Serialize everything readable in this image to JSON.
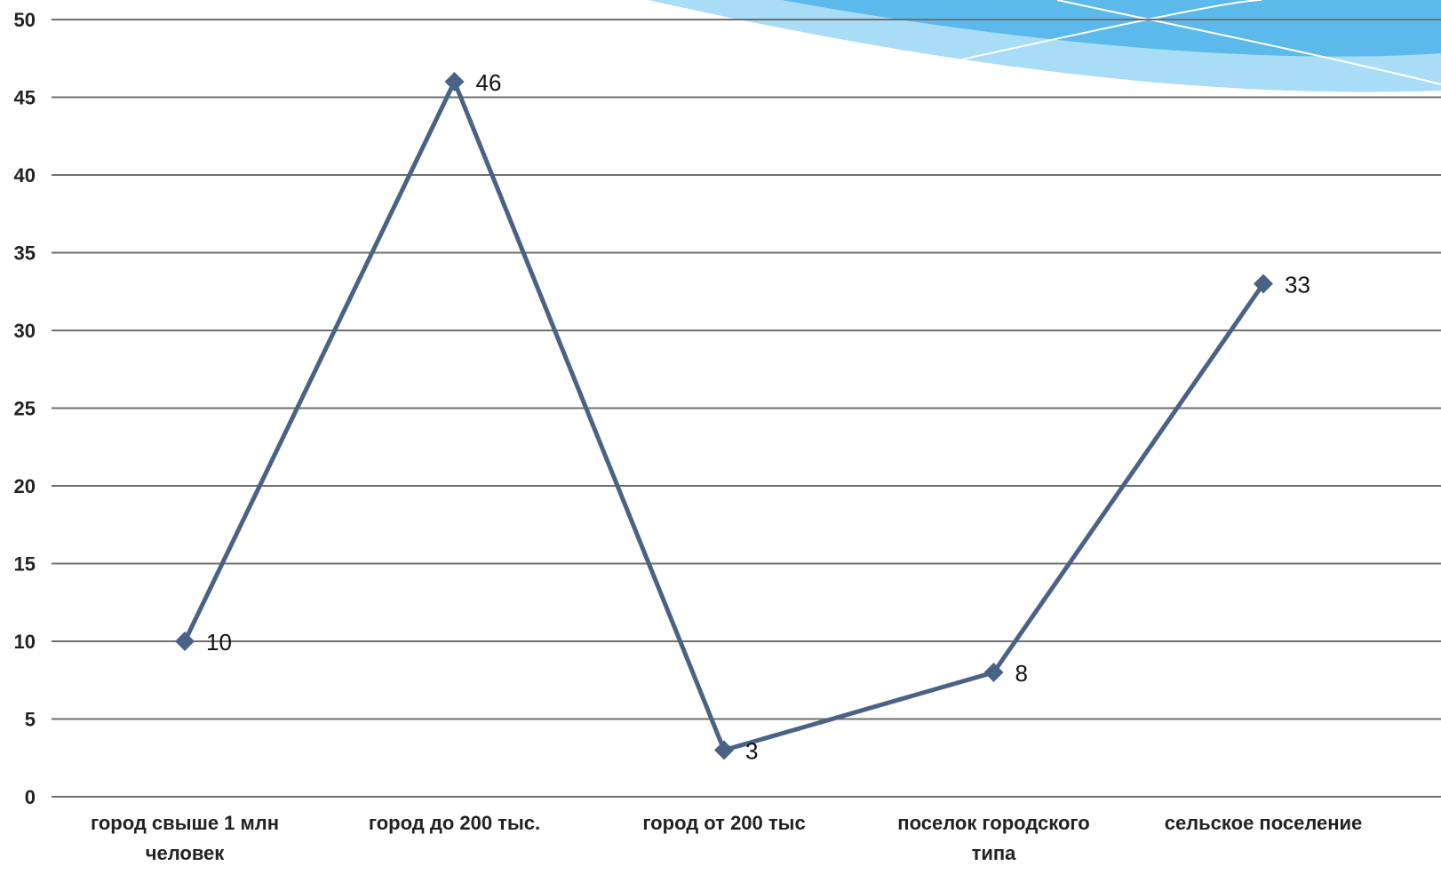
{
  "chart_data": {
    "type": "line",
    "categories": [
      [
        "город  свыше 1 млн",
        "человек"
      ],
      [
        "город до 200 тыс."
      ],
      [
        "город от 200 тыс"
      ],
      [
        "поселок городского",
        "типа"
      ],
      [
        "сельское поселение"
      ]
    ],
    "values": [
      10,
      46,
      3,
      8,
      33
    ],
    "data_labels": [
      "10",
      "46",
      "3",
      "8",
      "33"
    ],
    "ylim": [
      0,
      50
    ],
    "yticks": [
      "0",
      "5",
      "10",
      "15",
      "20",
      "25",
      "30",
      "35",
      "40",
      "45",
      "50"
    ],
    "grid": true,
    "legend": "none",
    "title": "",
    "xlabel": "",
    "ylabel": "",
    "colors": {
      "line": "#4a6285",
      "marker": "#4a6285",
      "grid": "#6f6f6f",
      "decor_dark": "#4fb3ea",
      "decor_light": "#a9dcf7"
    }
  }
}
